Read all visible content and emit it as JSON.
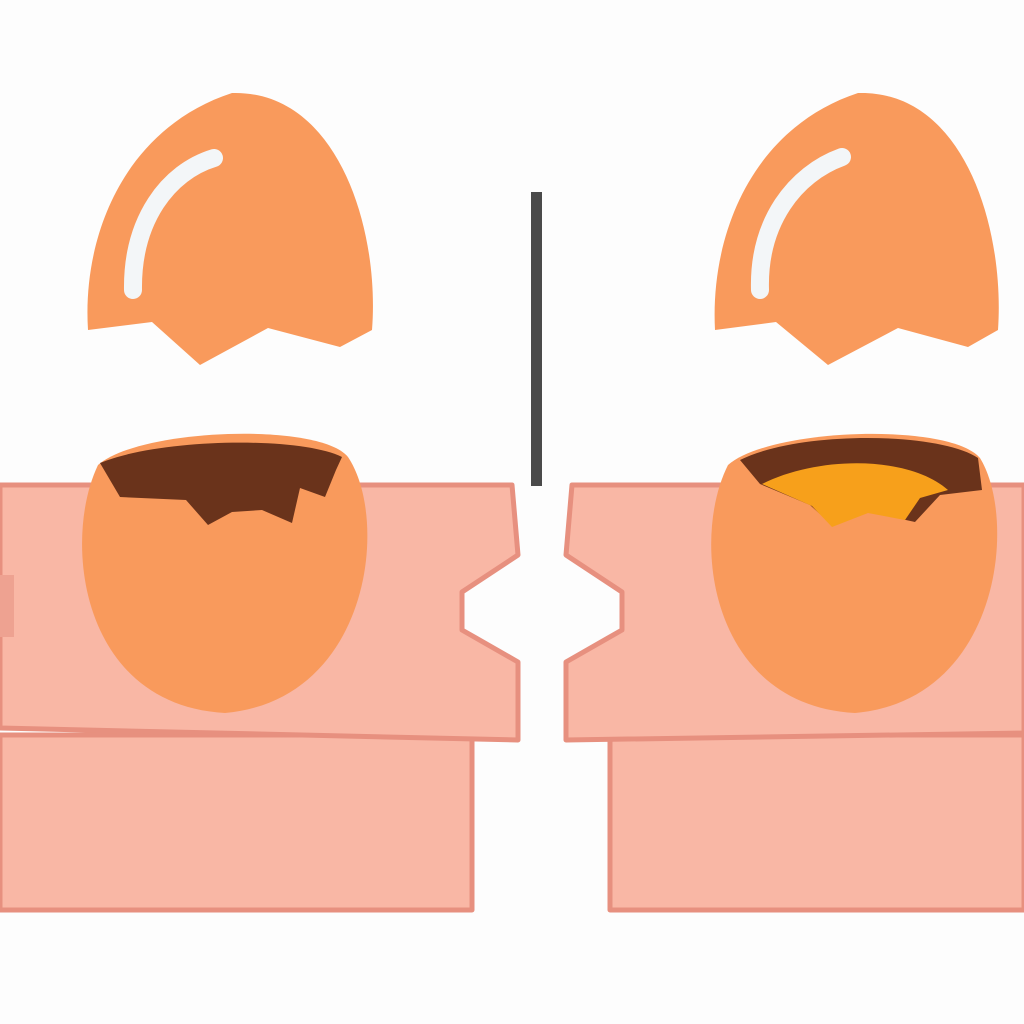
{
  "scene": {
    "description_label": "",
    "panels": [
      {
        "id": "left",
        "egg_state": "empty-shell"
      },
      {
        "id": "right",
        "egg_state": "shell-with-yolk"
      }
    ]
  },
  "colors": {
    "background": "#fdfdfd",
    "shell": "#f99a5c",
    "highlight": "#f3f6f8",
    "box_fill": "#f9b7a5",
    "box_stroke": "#e7907f",
    "box_left_tab": "#eea291",
    "shell_interior": "#6a331b",
    "yolk": "#f7a01b",
    "divider": "#4a4a4a"
  }
}
